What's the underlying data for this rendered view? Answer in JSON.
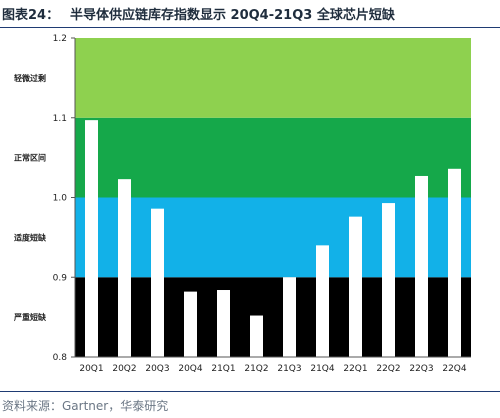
{
  "header": {
    "figure_label": "图表24：",
    "title": "半导体供应链库存指数显示 20Q4-21Q3 全球芯片短缺"
  },
  "source": {
    "text": "资料来源：Gartner，华泰研究"
  },
  "chart_data": {
    "type": "bar",
    "categories": [
      "20Q1",
      "20Q2",
      "20Q3",
      "20Q4",
      "21Q1",
      "21Q2",
      "21Q3",
      "21Q4",
      "22Q1",
      "22Q2",
      "22Q3",
      "22Q4"
    ],
    "values": [
      1.097,
      1.023,
      0.986,
      0.882,
      0.884,
      0.852,
      0.9,
      0.94,
      0.976,
      0.993,
      1.027,
      1.036
    ],
    "ylim": [
      0.8,
      1.2
    ],
    "yticks": [
      "0.8",
      "0.9",
      "1.0",
      "1.1",
      "1.2"
    ],
    "bar_color": "#ffffff",
    "zones": [
      {
        "label": "严重短缺",
        "from": 0.8,
        "to": 0.9,
        "color": "#000000"
      },
      {
        "label": "适度短缺",
        "from": 0.9,
        "to": 1.0,
        "color": "#12b1e8"
      },
      {
        "label": "正常区间",
        "from": 1.0,
        "to": 1.1,
        "color": "#15a84a"
      },
      {
        "label": "轻微过剩",
        "from": 1.1,
        "to": 1.2,
        "color": "#8ed14f"
      }
    ]
  }
}
